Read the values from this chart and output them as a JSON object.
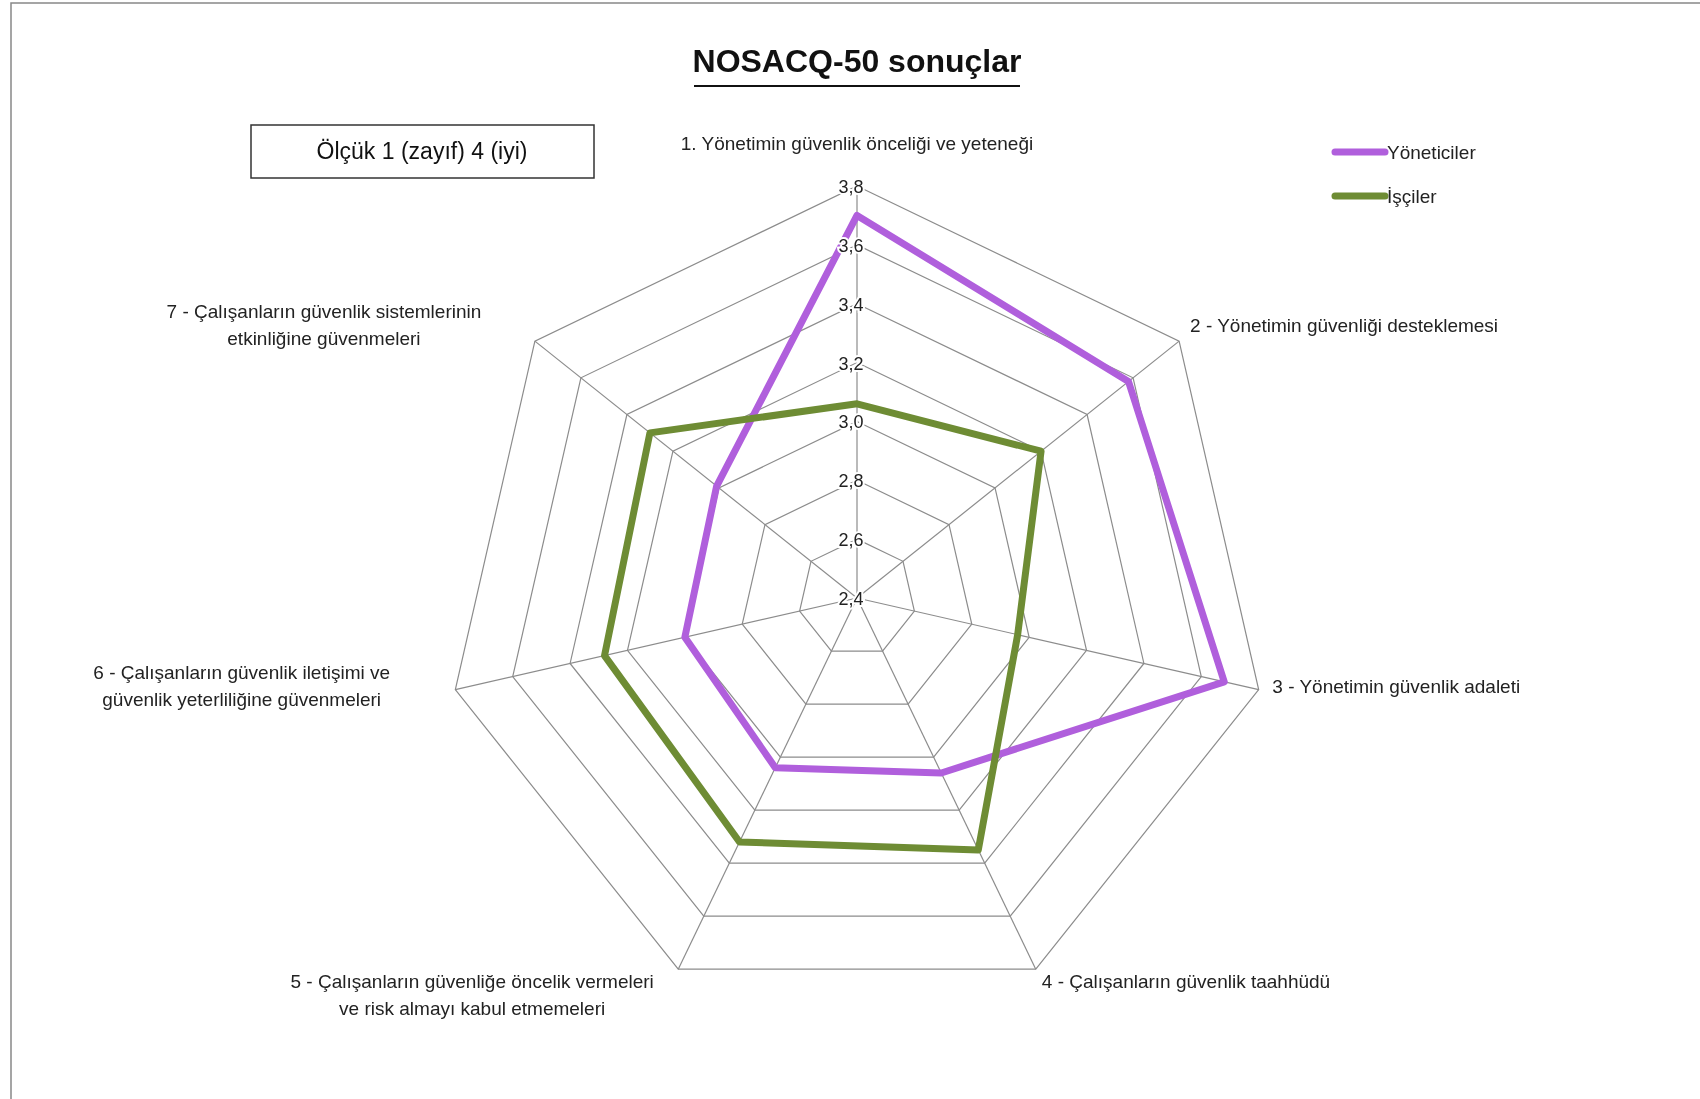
{
  "chart_data": {
    "type": "radar",
    "title": "NOSACQ-50 sonuçlar",
    "annotations": [
      "Ölçük 1 (zayıf) 4 (iyi)"
    ],
    "categories": [
      "1. Yönetimin güvenlik önceliği ve yeteneği",
      "2 - Yönetimin güvenliği desteklemesi",
      "3 - Yönetimin güvenlik adaleti",
      "4 - Çalışanların güvenlik taahhüdü",
      "5 - Çalışanların güvenliğe öncelik vermeleri ve risk almayı kabul etmemeleri",
      "6 - Çalışanların güvenlik iletişimi ve güvenlik yeterliliğine güvenmeleri",
      "7 - Çalışanların güvenlik sistemlerinin etkinliğine güvenmeleri"
    ],
    "series": [
      {
        "name": "Yöneticiler",
        "color": "#b05fdc",
        "values": [
          3.7,
          3.58,
          3.68,
          3.06,
          3.04,
          3.0,
          3.01
        ]
      },
      {
        "name": "İşçiler",
        "color": "#6e8c34",
        "values": [
          3.06,
          3.2,
          2.96,
          3.35,
          3.32,
          3.28,
          3.3
        ]
      }
    ],
    "ylim": [
      2.4,
      3.8
    ],
    "yticks": [
      {
        "value": 2.4,
        "label": "2,4"
      },
      {
        "value": 2.6,
        "label": "2,6"
      },
      {
        "value": 2.8,
        "label": "2,8"
      },
      {
        "value": 3.0,
        "label": "3,0"
      },
      {
        "value": 3.2,
        "label": "3,2"
      },
      {
        "value": 3.4,
        "label": "3,4"
      },
      {
        "value": 3.6,
        "label": "3,6"
      },
      {
        "value": 3.8,
        "label": "3,8"
      }
    ],
    "grid": true,
    "legend": "top right",
    "line_style": "solid",
    "marker": "none"
  }
}
